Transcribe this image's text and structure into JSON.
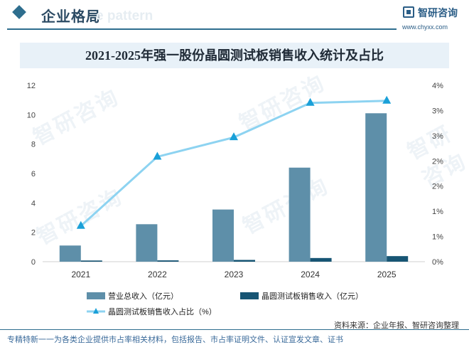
{
  "header": {
    "section_title": "企业格局",
    "watermark_text": "e pattern",
    "logo_name": "智研咨询",
    "logo_url": "www.chyxx.com"
  },
  "watermark": "智研咨询",
  "chart_data": {
    "type": "bar",
    "title": "2021-2025年强一股份晶圆测试板销售收入统计及占比",
    "categories": [
      "2021",
      "2022",
      "2023",
      "2024",
      "2025"
    ],
    "series": [
      {
        "name": "营业总收入（亿元）",
        "type": "bar",
        "axis": "left",
        "color": "#5e8fa9",
        "values": [
          1.1,
          2.55,
          3.55,
          6.4,
          10.1
        ]
      },
      {
        "name": "晶圆测试板销售收入（亿元）",
        "type": "bar",
        "axis": "left",
        "color": "#175574",
        "values": [
          0.08,
          0.09,
          0.12,
          0.25,
          0.38
        ]
      },
      {
        "name": "晶圆测试板销售收入占比（%）",
        "type": "line",
        "axis": "right",
        "color": "#8dd3f1",
        "values": [
          0.81,
          2.38,
          2.82,
          3.6,
          3.65
        ]
      }
    ],
    "y_left": {
      "min": 0,
      "max": 12,
      "ticks": [
        0,
        2,
        4,
        6,
        8,
        10,
        12
      ]
    },
    "y_right": {
      "min": 0,
      "max": 4,
      "ticks": [
        "0%",
        "1%",
        "1%",
        "2%",
        "2%",
        "3%",
        "3%",
        "4%"
      ]
    },
    "legend_position": "bottom"
  },
  "footer": {
    "source": "资料来源：企业年报、智研咨询整理",
    "note": "专精特新一一为各类企业提供市占率相关材料，包括报告、市占率证明文件、认证宣发文章、证书"
  }
}
